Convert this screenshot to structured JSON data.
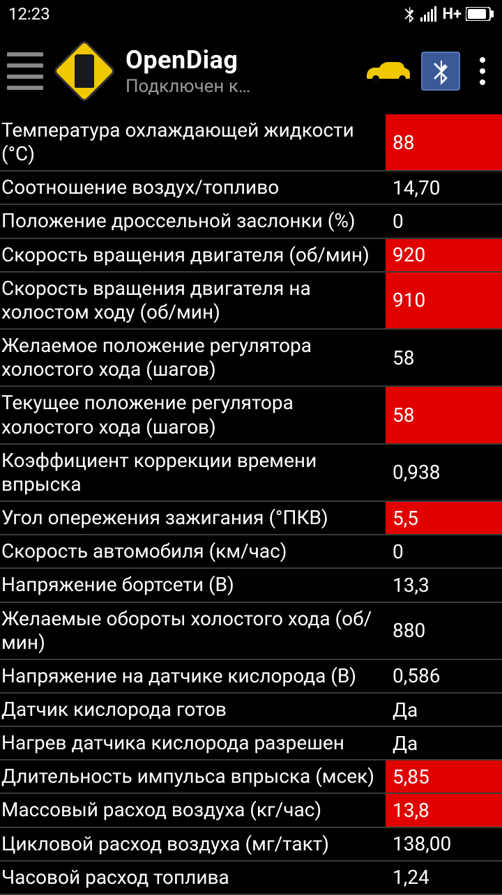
{
  "status": {
    "time": "12:23",
    "network": "H+"
  },
  "app": {
    "title": "OpenDiag",
    "subtitle": "Подключен к…"
  },
  "colors": {
    "alert_bg": "#e00000",
    "accent": "#f0c800",
    "bt_badge": "#3b5998",
    "divider": "#3a3a3a"
  },
  "rows": [
    {
      "label": "Температура охлаждающей жидкости (°C)",
      "value": "88",
      "alert": true
    },
    {
      "label": "Соотношение воздух/топливо",
      "value": "14,70",
      "alert": false
    },
    {
      "label": "Положение дроссельной заслонки (%)",
      "value": "0",
      "alert": false
    },
    {
      "label": "Скорость вращения двигателя (об/мин)",
      "value": "920",
      "alert": true
    },
    {
      "label": "Скорость вращения двигателя на холостом ходу (об/мин)",
      "value": "910",
      "alert": true
    },
    {
      "label": "Желаемое положение регулятора холостого хода (шагов)",
      "value": "58",
      "alert": false
    },
    {
      "label": "Текущее положение регулятора холостого хода (шагов)",
      "value": "58",
      "alert": true
    },
    {
      "label": "Коэффициент коррекции времени впрыска",
      "value": "0,938",
      "alert": false
    },
    {
      "label": "Угол опережения зажигания (°ПКВ)",
      "value": "5,5",
      "alert": true
    },
    {
      "label": "Скорость автомобиля (км/час)",
      "value": "0",
      "alert": false
    },
    {
      "label": "Напряжение бортсети (В)",
      "value": "13,3",
      "alert": false
    },
    {
      "label": "Желаемые обороты холостого хода (об/мин)",
      "value": "880",
      "alert": false
    },
    {
      "label": "Напряжение на датчике кислорода (В)",
      "value": "0,586",
      "alert": false
    },
    {
      "label": "Датчик кислорода готов",
      "value": "Да",
      "alert": false
    },
    {
      "label": "Нагрев датчика кислорода разрешен",
      "value": "Да",
      "alert": false
    },
    {
      "label": "Длительность импульса впрыска (мсек)",
      "value": "5,85",
      "alert": true
    },
    {
      "label": "Массовый расход воздуха (кг/час)",
      "value": "13,8",
      "alert": true
    },
    {
      "label": "Цикловой расход воздуха (мг/такт)",
      "value": "138,00",
      "alert": false
    },
    {
      "label": "Часовой расход топлива",
      "value": "1,24",
      "alert": false
    }
  ]
}
